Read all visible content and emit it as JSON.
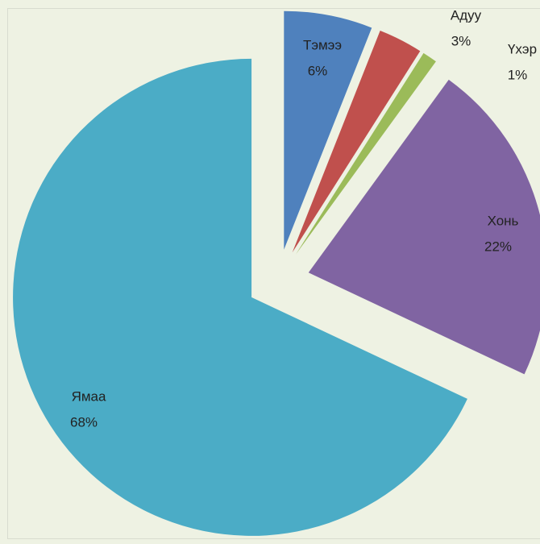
{
  "chart_data": {
    "type": "pie",
    "categories": [
      "Тэмээ",
      "Адуу",
      "Үхэр",
      "Хонь",
      "Ямаа"
    ],
    "values": [
      6,
      3,
      1,
      22,
      68
    ],
    "value_labels": [
      "6%",
      "3%",
      "1%",
      "22%",
      "68%"
    ],
    "colors": [
      "#4f81bd",
      "#c0504d",
      "#9bbb59",
      "#8064a2",
      "#4bacc6"
    ]
  }
}
